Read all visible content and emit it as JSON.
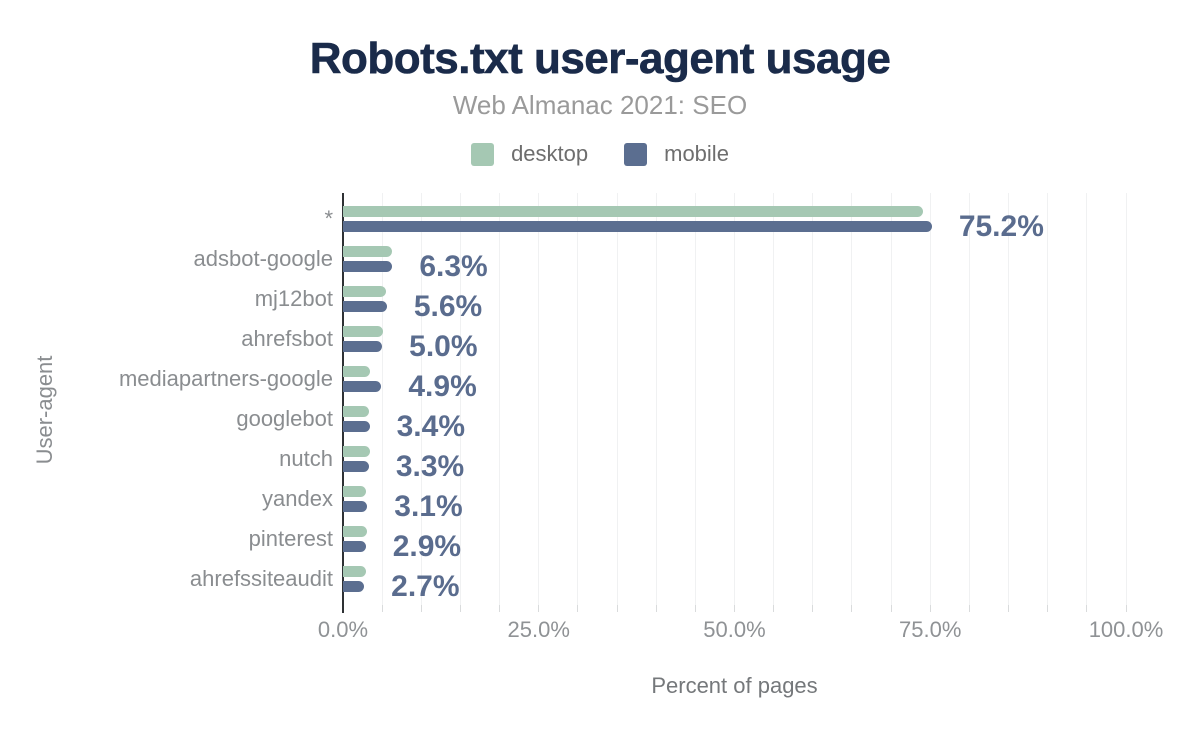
{
  "chart_data": {
    "type": "bar",
    "orientation": "horizontal",
    "title": "Robots.txt user-agent usage",
    "subtitle": "Web Almanac 2021: SEO",
    "xlabel": "Percent of pages",
    "ylabel": "User-agent",
    "legend_position": "top",
    "grid": "vertical, every 5%",
    "xlim": [
      0,
      100
    ],
    "grid_step": 5,
    "categories": [
      "*",
      "adsbot-google",
      "mj12bot",
      "ahrefsbot",
      "mediapartners-google",
      "googlebot",
      "nutch",
      "yandex",
      "pinterest",
      "ahrefssiteaudit"
    ],
    "series": [
      {
        "name": "desktop",
        "color": "#a5c8b3",
        "values": [
          74.1,
          6.2,
          5.5,
          5.1,
          3.5,
          3.3,
          3.4,
          3.0,
          3.1,
          2.9
        ]
      },
      {
        "name": "mobile",
        "color": "#5b6e90",
        "values": [
          75.2,
          6.3,
          5.6,
          5.0,
          4.9,
          3.4,
          3.3,
          3.1,
          2.9,
          2.7
        ],
        "labels": [
          "75.2%",
          "6.3%",
          "5.6%",
          "5.0%",
          "4.9%",
          "3.4%",
          "3.3%",
          "3.1%",
          "2.9%",
          "2.7%"
        ]
      }
    ],
    "x_ticks": [
      {
        "value": 0,
        "label": "0.0%"
      },
      {
        "value": 25,
        "label": "25.0%"
      },
      {
        "value": 50,
        "label": "50.0%"
      },
      {
        "value": 75,
        "label": "75.0%"
      },
      {
        "value": 100,
        "label": "100.0%"
      }
    ]
  },
  "colors": {
    "title": "#1a2b4a",
    "subtitle": "#9a9a9a",
    "legend_text": "#6e6e6e",
    "category_label": "#8a8d90",
    "tick_label": "#8f9295",
    "axis_caption": "#75787b",
    "value_label": "#5a6c8e",
    "gridline": "#f0f1f2",
    "axis_line": "#2e3134",
    "minor_tick": "#d9dbdc",
    "background": "#ffffff"
  }
}
